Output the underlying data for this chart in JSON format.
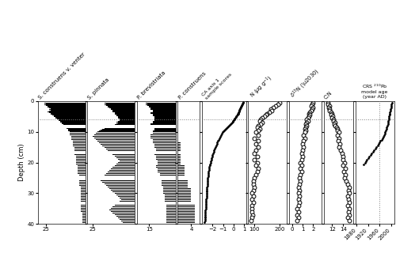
{
  "depths": [
    0.25,
    0.5,
    0.75,
    1.0,
    1.25,
    1.5,
    1.75,
    2.0,
    2.25,
    2.5,
    2.75,
    3.0,
    3.25,
    3.5,
    3.75,
    4.0,
    4.25,
    4.5,
    4.75,
    5.0,
    5.25,
    5.5,
    5.75,
    6.0,
    6.25,
    6.5,
    6.75,
    7.0,
    7.25,
    7.5,
    7.75,
    8.0,
    8.25,
    8.5,
    8.75,
    9.0,
    9.25,
    9.5,
    9.75,
    10.0,
    10.5,
    11.0,
    11.5,
    12.0,
    12.5,
    13.0,
    13.5,
    14.0,
    14.5,
    15.0,
    15.5,
    16.0,
    16.5,
    17.0,
    17.5,
    18.0,
    18.5,
    19.0,
    19.5,
    20.0,
    20.5,
    21.0,
    21.5,
    22.0,
    22.5,
    23.0,
    23.5,
    24.0,
    24.5,
    25.0,
    25.5,
    26.0,
    26.5,
    27.0,
    27.5,
    28.0,
    28.5,
    29.0,
    29.5,
    30.0,
    30.5,
    31.0,
    31.5,
    32.0,
    32.5,
    33.0,
    33.5,
    34.0,
    34.5,
    35.0,
    35.5,
    36.0,
    36.5,
    37.0,
    37.5,
    38.0,
    38.5,
    39.0,
    39.5
  ],
  "sc_venter": [
    28,
    27,
    26,
    25,
    26,
    25,
    24,
    24,
    23,
    22,
    23,
    22,
    23,
    24,
    23,
    22,
    22,
    21,
    20,
    20,
    19,
    19,
    18,
    17,
    17,
    16,
    16,
    15,
    15,
    14,
    14,
    13,
    13,
    13,
    12,
    12,
    11,
    11,
    11,
    10,
    10,
    10,
    9,
    9,
    9,
    8,
    8,
    8,
    8,
    7,
    7,
    7,
    7,
    7,
    7,
    6,
    6,
    6,
    6,
    6,
    6,
    5,
    5,
    5,
    5,
    5,
    5,
    4,
    4,
    4,
    4,
    4,
    4,
    4,
    4,
    3,
    3,
    3,
    3,
    3,
    3,
    3,
    3,
    3,
    3,
    3,
    3,
    3,
    3,
    3,
    3,
    3,
    2,
    2,
    2,
    2,
    2,
    2,
    2
  ],
  "s_pinnata": [
    20,
    19,
    18,
    17,
    18,
    17,
    16,
    16,
    15,
    14,
    14,
    13,
    13,
    13,
    12,
    12,
    12,
    11,
    11,
    10,
    10,
    10,
    9,
    9,
    9,
    10,
    11,
    10,
    11,
    12,
    13,
    14,
    15,
    16,
    17,
    18,
    19,
    20,
    21,
    22,
    23,
    24,
    25,
    24,
    23,
    22,
    21,
    20,
    19,
    18,
    17,
    16,
    15,
    14,
    13,
    12,
    11,
    10,
    9,
    10,
    11,
    12,
    13,
    14,
    15,
    16,
    17,
    18,
    19,
    20,
    21,
    20,
    19,
    18,
    17,
    16,
    15,
    14,
    13,
    12,
    11,
    10,
    9,
    8,
    9,
    10,
    11,
    12,
    13,
    14,
    15,
    14,
    13,
    12,
    11,
    10,
    9,
    8,
    7
  ],
  "p_brevistriata": [
    18,
    17,
    17,
    16,
    17,
    16,
    15,
    15,
    14,
    14,
    14,
    13,
    13,
    13,
    14,
    14,
    13,
    13,
    13,
    12,
    12,
    12,
    12,
    12,
    12,
    13,
    13,
    13,
    14,
    14,
    13,
    13,
    12,
    12,
    12,
    12,
    12,
    12,
    13,
    13,
    13,
    14,
    14,
    14,
    13,
    13,
    13,
    12,
    12,
    12,
    11,
    11,
    11,
    12,
    12,
    11,
    11,
    11,
    10,
    10,
    10,
    11,
    11,
    10,
    10,
    10,
    9,
    9,
    9,
    9,
    8,
    8,
    8,
    8,
    8,
    7,
    7,
    7,
    7,
    7,
    6,
    6,
    6,
    6,
    6,
    5,
    5,
    5,
    5,
    5,
    5,
    5,
    5,
    5,
    5,
    5,
    5,
    5,
    5
  ],
  "p_construens": [
    0,
    0,
    0,
    0,
    0,
    0,
    0,
    0,
    0,
    0,
    0,
    0,
    0,
    0,
    0,
    0,
    0,
    0,
    0,
    0,
    0,
    0,
    0,
    0,
    0,
    0,
    0,
    0,
    0,
    0,
    0,
    0,
    0,
    0,
    0,
    0,
    0,
    0,
    0,
    0,
    0,
    0,
    0,
    0,
    0,
    0,
    1,
    1,
    1,
    1,
    1,
    1,
    1,
    1,
    1,
    1,
    1,
    1,
    1,
    1,
    1,
    2,
    2,
    2,
    2,
    2,
    2,
    2,
    3,
    3,
    3,
    3,
    3,
    3,
    3,
    3,
    4,
    4,
    4,
    4,
    4,
    4,
    4,
    4,
    4,
    5,
    5,
    5,
    5,
    5,
    5,
    5,
    5,
    5,
    5,
    5,
    5,
    5,
    5
  ],
  "ca1_depth": [
    0.25,
    0.5,
    0.75,
    1.0,
    1.25,
    1.5,
    1.75,
    2.0,
    2.25,
    2.5,
    2.75,
    3.0,
    3.25,
    3.5,
    3.75,
    4.0,
    4.25,
    4.5,
    4.75,
    5.0,
    5.25,
    5.5,
    5.75,
    6.0,
    6.25,
    6.5,
    6.75,
    7.0,
    7.25,
    7.5,
    7.75,
    8.0,
    8.25,
    8.5,
    8.75,
    9.0,
    9.25,
    9.5,
    9.75,
    10.0,
    10.5,
    11.0,
    11.5,
    12.0,
    12.5,
    13.0,
    13.5,
    14.0,
    14.5,
    15.0,
    15.5,
    16.0,
    16.5,
    17.0,
    17.5,
    18.0,
    18.5,
    19.0,
    19.5,
    20.0,
    20.5,
    21.0,
    21.5,
    22.0,
    22.5,
    23.0,
    23.5,
    24.0,
    24.5,
    25.0,
    25.5,
    26.0,
    26.5,
    27.0,
    27.5,
    28.0,
    28.5,
    29.0,
    29.5,
    30.0,
    30.5,
    31.0,
    31.5,
    32.0,
    32.5,
    33.0,
    33.5,
    34.0,
    34.5,
    35.0,
    35.5,
    36.0,
    36.5,
    37.0,
    37.5,
    38.0,
    38.5,
    39.0,
    39.5
  ],
  "ca1_score": [
    0.9,
    0.88,
    0.85,
    0.82,
    0.78,
    0.74,
    0.7,
    0.66,
    0.62,
    0.58,
    0.55,
    0.52,
    0.5,
    0.48,
    0.45,
    0.42,
    0.38,
    0.35,
    0.3,
    0.25,
    0.2,
    0.15,
    0.1,
    0.05,
    0.0,
    -0.05,
    -0.1,
    -0.15,
    -0.2,
    -0.28,
    -0.36,
    -0.44,
    -0.52,
    -0.6,
    -0.68,
    -0.76,
    -0.84,
    -0.9,
    -0.96,
    -1.02,
    -1.1,
    -1.18,
    -1.26,
    -1.33,
    -1.4,
    -1.47,
    -1.53,
    -1.59,
    -1.65,
    -1.71,
    -1.77,
    -1.82,
    -1.87,
    -1.92,
    -1.97,
    -2.01,
    -2.05,
    -2.09,
    -2.13,
    -2.17,
    -2.21,
    -2.24,
    -2.27,
    -2.3,
    -2.33,
    -2.35,
    -2.37,
    -2.39,
    -2.41,
    -2.43,
    -2.44,
    -2.45,
    -2.46,
    -2.47,
    -2.48,
    -2.49,
    -2.5,
    -2.51,
    -2.52,
    -2.53,
    -2.54,
    -2.55,
    -2.56,
    -2.57,
    -2.58,
    -2.59,
    -2.6,
    -2.61,
    -2.62,
    -2.63,
    -2.64,
    -2.65,
    -2.66,
    -2.67,
    -2.68,
    -2.69,
    -2.7,
    -2.71,
    -2.72
  ],
  "N_depth": [
    0.5,
    1.0,
    1.5,
    2.0,
    2.5,
    3.0,
    3.5,
    4.0,
    4.5,
    5.0,
    5.5,
    6.0,
    6.5,
    7.0,
    7.5,
    8.0,
    8.5,
    9.0,
    9.5,
    10.0,
    11.0,
    12.0,
    13.0,
    14.0,
    15.0,
    16.0,
    17.0,
    18.0,
    19.0,
    20.0,
    21.0,
    22.0,
    23.0,
    24.0,
    25.0,
    26.0,
    27.0,
    28.0,
    29.0,
    30.0,
    31.0,
    32.0,
    33.0,
    34.0,
    35.0,
    36.0,
    37.0,
    38.0,
    39.0
  ],
  "N_value": [
    200,
    195,
    185,
    175,
    165,
    170,
    160,
    150,
    145,
    140,
    130,
    125,
    120,
    130,
    125,
    115,
    110,
    120,
    115,
    105,
    115,
    100,
    115,
    105,
    115,
    105,
    100,
    110,
    100,
    110,
    105,
    115,
    110,
    105,
    100,
    95,
    95,
    100,
    95,
    90,
    95,
    90,
    95,
    90,
    88,
    90,
    92,
    88,
    85
  ],
  "d15N_depth": [
    0.5,
    1.0,
    1.5,
    2.0,
    2.5,
    3.0,
    3.5,
    4.0,
    4.5,
    5.0,
    5.5,
    6.0,
    6.5,
    7.0,
    7.5,
    8.0,
    8.5,
    9.0,
    9.5,
    10.0,
    11.0,
    12.0,
    13.0,
    14.0,
    15.0,
    16.0,
    17.0,
    18.0,
    19.0,
    20.0,
    21.0,
    22.0,
    23.0,
    24.0,
    25.0,
    26.0,
    27.0,
    28.0,
    29.0,
    30.0,
    31.0,
    32.0,
    33.0,
    34.0,
    35.0,
    36.0,
    37.0,
    38.0,
    39.0
  ],
  "d15N_value": [
    2.0,
    1.9,
    1.8,
    2.0,
    1.9,
    1.8,
    1.7,
    1.6,
    1.7,
    1.6,
    1.5,
    1.4,
    1.5,
    1.4,
    1.3,
    1.4,
    1.3,
    1.2,
    1.3,
    1.2,
    1.1,
    1.2,
    1.1,
    1.0,
    1.1,
    1.0,
    0.9,
    1.0,
    0.9,
    0.8,
    0.9,
    0.8,
    0.9,
    0.8,
    0.7,
    0.8,
    0.7,
    0.6,
    0.7,
    0.6,
    0.7,
    0.6,
    0.7,
    0.6,
    0.5,
    0.6,
    0.5,
    0.6,
    0.5
  ],
  "CN_depth": [
    0.5,
    1.0,
    1.5,
    2.0,
    2.5,
    3.0,
    3.5,
    4.0,
    4.5,
    5.0,
    5.5,
    6.0,
    6.5,
    7.0,
    7.5,
    8.0,
    8.5,
    9.0,
    9.5,
    10.0,
    11.0,
    12.0,
    13.0,
    14.0,
    15.0,
    16.0,
    17.0,
    18.0,
    19.0,
    20.0,
    21.0,
    22.0,
    23.0,
    24.0,
    25.0,
    26.0,
    27.0,
    28.0,
    29.0,
    30.0,
    31.0,
    32.0,
    33.0,
    34.0,
    35.0,
    36.0,
    37.0,
    38.0,
    39.0
  ],
  "CN_value": [
    11.2,
    11.3,
    11.5,
    11.4,
    11.6,
    11.5,
    11.8,
    12.0,
    11.9,
    12.1,
    12.0,
    12.2,
    12.3,
    12.5,
    12.4,
    12.6,
    12.8,
    13.0,
    12.9,
    13.2,
    13.0,
    13.3,
    13.1,
    13.4,
    13.2,
    13.5,
    13.8,
    14.0,
    13.9,
    14.2,
    14.0,
    14.3,
    14.1,
    14.4,
    14.2,
    14.5,
    14.8,
    15.0,
    14.9,
    15.0,
    14.8,
    14.9,
    15.0,
    14.8,
    15.0,
    14.9,
    15.0,
    14.8,
    15.0
  ],
  "crs_depth": [
    0.5,
    1.0,
    1.5,
    2.0,
    2.5,
    3.0,
    3.5,
    4.0,
    4.5,
    5.0,
    5.5,
    6.0,
    6.5,
    7.0,
    7.5,
    8.0,
    8.5,
    9.0,
    9.5,
    10.0,
    10.5,
    11.0,
    11.5,
    12.0,
    12.5,
    13.0,
    13.5,
    14.0,
    14.5,
    15.0,
    15.5,
    16.0,
    16.5,
    17.0,
    17.5,
    18.0,
    18.5,
    19.0,
    19.5,
    20.0,
    20.5
  ],
  "crs_age": [
    2002,
    2001,
    2000,
    1999,
    1998,
    1997,
    1996,
    1995,
    1994,
    1993,
    1992,
    1991,
    1990,
    1989,
    1988,
    1987,
    1985,
    1983,
    1981,
    1979,
    1977,
    1975,
    1972,
    1969,
    1966,
    1963,
    1960,
    1957,
    1953,
    1949,
    1945,
    1940,
    1936,
    1932,
    1928,
    1924,
    1920,
    1916,
    1912,
    1908,
    1904
  ],
  "depth_1960_line": 6.0,
  "ylim": [
    0,
    40
  ],
  "ylabel": "Depth (cm)",
  "yticks": [
    0,
    10,
    20,
    30,
    40
  ]
}
